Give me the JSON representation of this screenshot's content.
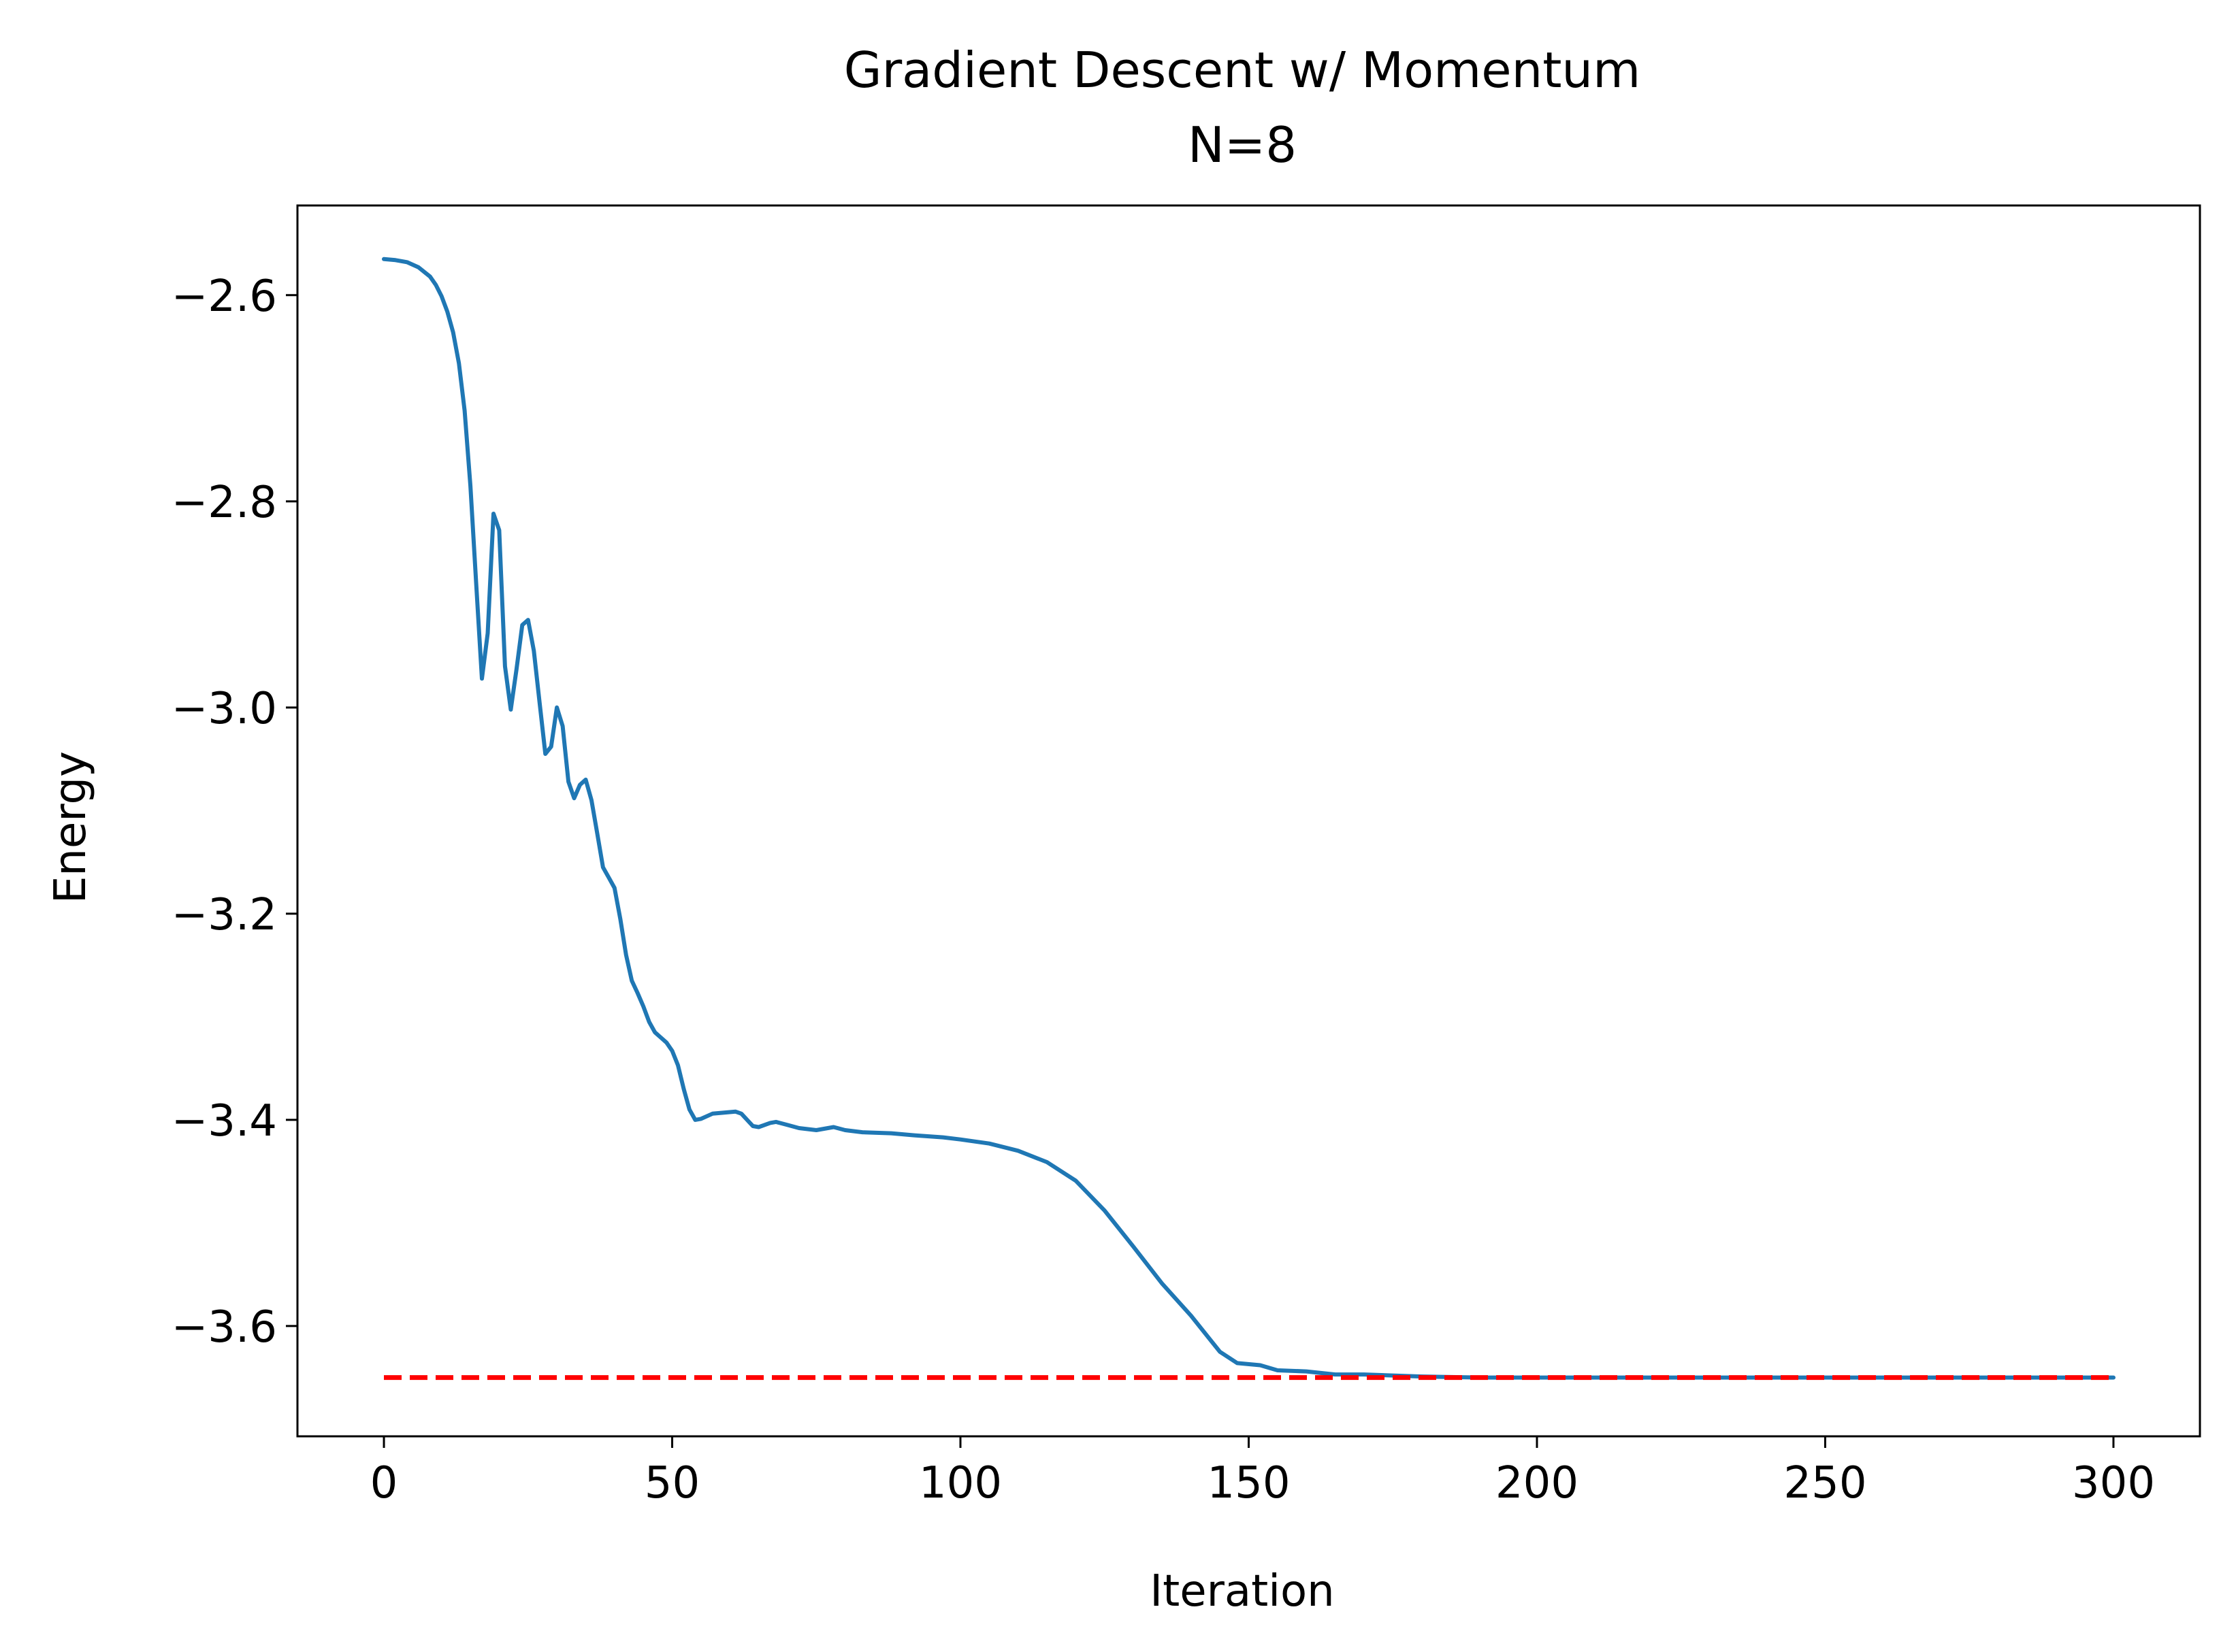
{
  "chart_data": {
    "type": "line",
    "title": "Gradient Descent w/ Momentum",
    "subtitle": "N=8",
    "xlabel": "Iteration",
    "ylabel": "Energy",
    "xlim": [
      -15,
      315
    ],
    "ylim": [
      -3.707,
      -2.513
    ],
    "xticks": [
      0,
      50,
      100,
      150,
      200,
      250,
      300
    ],
    "xtick_labels": [
      "0",
      "50",
      "100",
      "150",
      "200",
      "250",
      "300"
    ],
    "yticks": [
      -2.6,
      -2.8,
      -3.0,
      -3.2,
      -3.4,
      -3.6
    ],
    "ytick_labels": [
      "−2.6",
      "−2.8",
      "−3.0",
      "−3.2",
      "−3.4",
      "−3.6"
    ],
    "grid": false,
    "series": [
      {
        "color": "#1f77b4",
        "style": "solid",
        "points": [
          [
            0,
            -2.565
          ],
          [
            2,
            -2.566
          ],
          [
            4,
            -2.568
          ],
          [
            6,
            -2.573
          ],
          [
            8,
            -2.582
          ],
          [
            9,
            -2.59
          ],
          [
            10,
            -2.601
          ],
          [
            11,
            -2.616
          ],
          [
            12,
            -2.636
          ],
          [
            13,
            -2.666
          ],
          [
            14,
            -2.712
          ],
          [
            15,
            -2.785
          ],
          [
            16,
            -2.88
          ],
          [
            17,
            -2.972
          ],
          [
            18,
            -2.928
          ],
          [
            19,
            -2.812
          ],
          [
            20,
            -2.828
          ],
          [
            21,
            -2.96
          ],
          [
            22,
            -3.002
          ],
          [
            23,
            -2.963
          ],
          [
            24,
            -2.92
          ],
          [
            25,
            -2.915
          ],
          [
            26,
            -2.945
          ],
          [
            27,
            -2.995
          ],
          [
            28,
            -3.045
          ],
          [
            29,
            -3.038
          ],
          [
            30,
            -3.0
          ],
          [
            31,
            -3.018
          ],
          [
            32,
            -3.072
          ],
          [
            33,
            -3.088
          ],
          [
            34,
            -3.075
          ],
          [
            35,
            -3.07
          ],
          [
            36,
            -3.09
          ],
          [
            37,
            -3.122
          ],
          [
            38,
            -3.155
          ],
          [
            39,
            -3.165
          ],
          [
            40,
            -3.175
          ],
          [
            41,
            -3.205
          ],
          [
            42,
            -3.24
          ],
          [
            43,
            -3.265
          ],
          [
            44,
            -3.277
          ],
          [
            45,
            -3.29
          ],
          [
            46,
            -3.305
          ],
          [
            47,
            -3.315
          ],
          [
            48,
            -3.32
          ],
          [
            49,
            -3.325
          ],
          [
            50,
            -3.333
          ],
          [
            51,
            -3.347
          ],
          [
            52,
            -3.37
          ],
          [
            53,
            -3.39
          ],
          [
            54,
            -3.4
          ],
          [
            55,
            -3.399
          ],
          [
            57,
            -3.394
          ],
          [
            59,
            -3.393
          ],
          [
            61,
            -3.392
          ],
          [
            62,
            -3.394
          ],
          [
            63,
            -3.4
          ],
          [
            64,
            -3.406
          ],
          [
            65,
            -3.407
          ],
          [
            67,
            -3.403
          ],
          [
            68,
            -3.402
          ],
          [
            70,
            -3.405
          ],
          [
            72,
            -3.408
          ],
          [
            75,
            -3.41
          ],
          [
            78,
            -3.407
          ],
          [
            80,
            -3.41
          ],
          [
            83,
            -3.412
          ],
          [
            88,
            -3.413
          ],
          [
            92,
            -3.415
          ],
          [
            97,
            -3.417
          ],
          [
            100,
            -3.419
          ],
          [
            105,
            -3.423
          ],
          [
            110,
            -3.43
          ],
          [
            115,
            -3.441
          ],
          [
            120,
            -3.459
          ],
          [
            125,
            -3.488
          ],
          [
            130,
            -3.523
          ],
          [
            135,
            -3.559
          ],
          [
            140,
            -3.59
          ],
          [
            145,
            -3.625
          ],
          [
            148,
            -3.636
          ],
          [
            152,
            -3.638
          ],
          [
            155,
            -3.643
          ],
          [
            160,
            -3.644
          ],
          [
            165,
            -3.647
          ],
          [
            170,
            -3.647
          ],
          [
            180,
            -3.649
          ],
          [
            190,
            -3.65
          ],
          [
            200,
            -3.65
          ],
          [
            250,
            -3.65
          ],
          [
            300,
            -3.65
          ]
        ]
      },
      {
        "color": "#ff0000",
        "style": "dashed",
        "points": [
          [
            0,
            -3.65
          ],
          [
            300,
            -3.65
          ]
        ]
      }
    ]
  }
}
